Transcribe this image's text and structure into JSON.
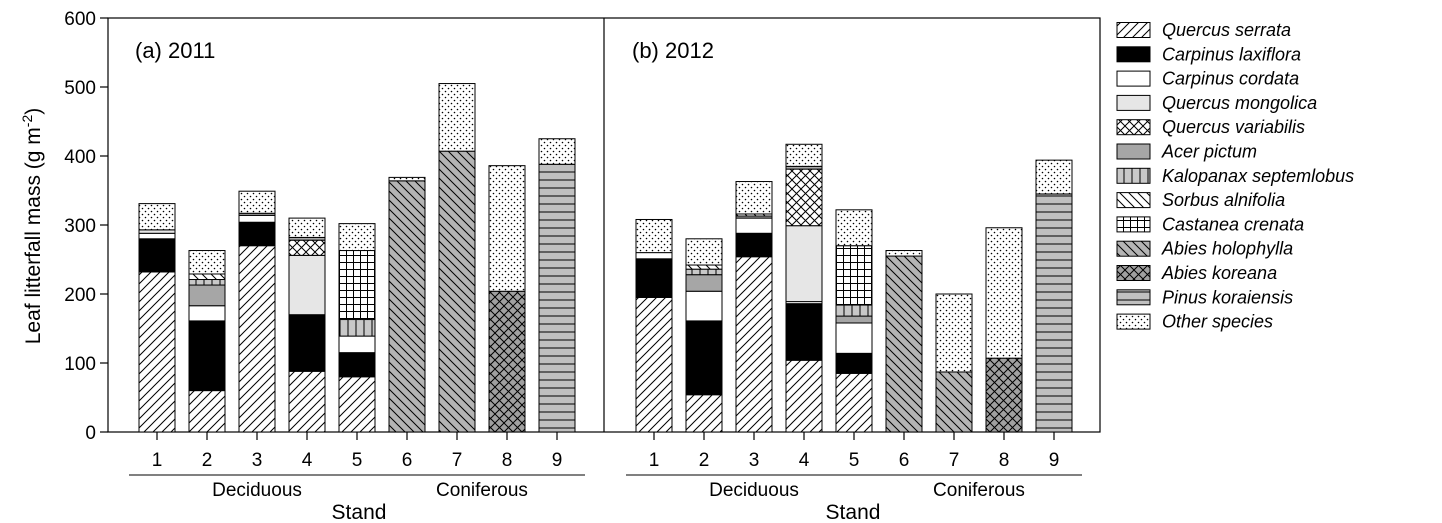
{
  "chart_data": {
    "type": "bar",
    "stacked": true,
    "ylabel": "Leaf litterfall mass (g m",
    "ylabel_sup": "-2",
    "ylabel_end": ")",
    "ylim": [
      0,
      600
    ],
    "yticks": [
      "0",
      "100",
      "200",
      "300",
      "400",
      "500",
      "600"
    ],
    "xlabel": "Stand",
    "categories": [
      "1",
      "2",
      "3",
      "4",
      "5",
      "6",
      "7",
      "8",
      "9"
    ],
    "groups": [
      {
        "name": "Deciduous",
        "stands": [
          "1",
          "2",
          "3",
          "4",
          "5"
        ]
      },
      {
        "name": "Coniferous",
        "stands": [
          "6",
          "7",
          "8",
          "9"
        ]
      }
    ],
    "legend_position": "right",
    "legend": [
      {
        "name": "Quercus serrata",
        "pattern": "diag-right",
        "fill": "#ffffff"
      },
      {
        "name": "Carpinus laxiflora",
        "pattern": "solid",
        "fill": "#000000"
      },
      {
        "name": "Carpinus cordata",
        "pattern": "solid",
        "fill": "#ffffff"
      },
      {
        "name": "Quercus mongolica",
        "pattern": "solid",
        "fill": "#e6e6e6"
      },
      {
        "name": "Quercus variabilis",
        "pattern": "crosshatch-diag",
        "fill": "#ffffff"
      },
      {
        "name": "Acer pictum",
        "pattern": "solid",
        "fill": "#a6a6a6"
      },
      {
        "name": "Kalopanax septemlobus",
        "pattern": "vertical",
        "fill": "#c8c8c8"
      },
      {
        "name": "Sorbus alnifolia",
        "pattern": "diag-left",
        "fill": "#ffffff"
      },
      {
        "name": "Castanea crenata",
        "pattern": "grid",
        "fill": "#ffffff"
      },
      {
        "name": "Abies holophylla",
        "pattern": "diag-left",
        "fill": "#b4b4b4"
      },
      {
        "name": "Abies koreana",
        "pattern": "crosshatch-diag",
        "fill": "#a0a0a0"
      },
      {
        "name": "Pinus koraiensis",
        "pattern": "horizontal",
        "fill": "#c0c0c0"
      },
      {
        "name": "Other species",
        "pattern": "dots",
        "fill": "#ffffff"
      }
    ],
    "panels": [
      {
        "label": "(a) 2011",
        "bars": [
          {
            "stand": "1",
            "segments": [
              {
                "species": "Quercus serrata",
                "value": 232
              },
              {
                "species": "Carpinus laxiflora",
                "value": 48
              },
              {
                "species": "Carpinus cordata",
                "value": 8
              },
              {
                "species": "Quercus mongolica",
                "value": 5
              },
              {
                "species": "Other species",
                "value": 38
              }
            ]
          },
          {
            "stand": "2",
            "segments": [
              {
                "species": "Quercus serrata",
                "value": 60
              },
              {
                "species": "Carpinus laxiflora",
                "value": 101
              },
              {
                "species": "Carpinus cordata",
                "value": 22
              },
              {
                "species": "Acer pictum",
                "value": 30
              },
              {
                "species": "Kalopanax septemlobus",
                "value": 8
              },
              {
                "species": "Sorbus alnifolia",
                "value": 8
              },
              {
                "species": "Other species",
                "value": 34
              }
            ]
          },
          {
            "stand": "3",
            "segments": [
              {
                "species": "Quercus serrata",
                "value": 270
              },
              {
                "species": "Carpinus laxiflora",
                "value": 34
              },
              {
                "species": "Carpinus cordata",
                "value": 10
              },
              {
                "species": "Acer pictum",
                "value": 3
              },
              {
                "species": "Other species",
                "value": 32
              }
            ]
          },
          {
            "stand": "4",
            "segments": [
              {
                "species": "Quercus serrata",
                "value": 88
              },
              {
                "species": "Carpinus laxiflora",
                "value": 82
              },
              {
                "species": "Quercus mongolica",
                "value": 86
              },
              {
                "species": "Quercus variabilis",
                "value": 22
              },
              {
                "species": "Acer pictum",
                "value": 4
              },
              {
                "species": "Other species",
                "value": 28
              }
            ]
          },
          {
            "stand": "5",
            "segments": [
              {
                "species": "Quercus serrata",
                "value": 80
              },
              {
                "species": "Carpinus laxiflora",
                "value": 35
              },
              {
                "species": "Carpinus cordata",
                "value": 24
              },
              {
                "species": "Kalopanax septemlobus",
                "value": 24
              },
              {
                "species": "Castanea crenata",
                "value": 100
              },
              {
                "species": "Other species",
                "value": 39
              }
            ]
          },
          {
            "stand": "6",
            "segments": [
              {
                "species": "Abies holophylla",
                "value": 364
              },
              {
                "species": "Other species",
                "value": 5
              }
            ]
          },
          {
            "stand": "7",
            "segments": [
              {
                "species": "Abies holophylla",
                "value": 407
              },
              {
                "species": "Other species",
                "value": 98
              }
            ]
          },
          {
            "stand": "8",
            "segments": [
              {
                "species": "Abies koreana",
                "value": 204
              },
              {
                "species": "Other species",
                "value": 182
              }
            ]
          },
          {
            "stand": "9",
            "segments": [
              {
                "species": "Pinus koraiensis",
                "value": 388
              },
              {
                "species": "Other species",
                "value": 37
              }
            ]
          }
        ]
      },
      {
        "label": "(b) 2012",
        "bars": [
          {
            "stand": "1",
            "segments": [
              {
                "species": "Quercus serrata",
                "value": 195
              },
              {
                "species": "Carpinus laxiflora",
                "value": 56
              },
              {
                "species": "Carpinus cordata",
                "value": 9
              },
              {
                "species": "Other species",
                "value": 48
              }
            ]
          },
          {
            "stand": "2",
            "segments": [
              {
                "species": "Quercus serrata",
                "value": 54
              },
              {
                "species": "Carpinus laxiflora",
                "value": 107
              },
              {
                "species": "Carpinus cordata",
                "value": 43
              },
              {
                "species": "Acer pictum",
                "value": 24
              },
              {
                "species": "Kalopanax septemlobus",
                "value": 8
              },
              {
                "species": "Sorbus alnifolia",
                "value": 6
              },
              {
                "species": "Other species",
                "value": 38
              }
            ]
          },
          {
            "stand": "3",
            "segments": [
              {
                "species": "Quercus serrata",
                "value": 254
              },
              {
                "species": "Carpinus laxiflora",
                "value": 34
              },
              {
                "species": "Carpinus cordata",
                "value": 22
              },
              {
                "species": "Acer pictum",
                "value": 3
              },
              {
                "species": "Sorbus alnifolia",
                "value": 3
              },
              {
                "species": "Other species",
                "value": 47
              }
            ]
          },
          {
            "stand": "4",
            "segments": [
              {
                "species": "Quercus serrata",
                "value": 104
              },
              {
                "species": "Carpinus laxiflora",
                "value": 82
              },
              {
                "species": "Carpinus cordata",
                "value": 3
              },
              {
                "species": "Quercus mongolica",
                "value": 110
              },
              {
                "species": "Quercus variabilis",
                "value": 82
              },
              {
                "species": "Acer pictum",
                "value": 4
              },
              {
                "species": "Other species",
                "value": 32
              }
            ]
          },
          {
            "stand": "5",
            "segments": [
              {
                "species": "Quercus serrata",
                "value": 85
              },
              {
                "species": "Carpinus laxiflora",
                "value": 29
              },
              {
                "species": "Carpinus cordata",
                "value": 44
              },
              {
                "species": "Acer pictum",
                "value": 10
              },
              {
                "species": "Kalopanax septemlobus",
                "value": 16
              },
              {
                "species": "Castanea crenata",
                "value": 86
              },
              {
                "species": "Other species",
                "value": 52
              }
            ]
          },
          {
            "stand": "6",
            "segments": [
              {
                "species": "Abies holophylla",
                "value": 255
              },
              {
                "species": "Other species",
                "value": 8
              }
            ]
          },
          {
            "stand": "7",
            "segments": [
              {
                "species": "Abies holophylla",
                "value": 87
              },
              {
                "species": "Other species",
                "value": 113
              }
            ]
          },
          {
            "stand": "8",
            "segments": [
              {
                "species": "Abies koreana",
                "value": 107
              },
              {
                "species": "Other species",
                "value": 189
              }
            ]
          },
          {
            "stand": "9",
            "segments": [
              {
                "species": "Pinus koraiensis",
                "value": 345
              },
              {
                "species": "Other species",
                "value": 49
              }
            ]
          }
        ]
      }
    ]
  }
}
